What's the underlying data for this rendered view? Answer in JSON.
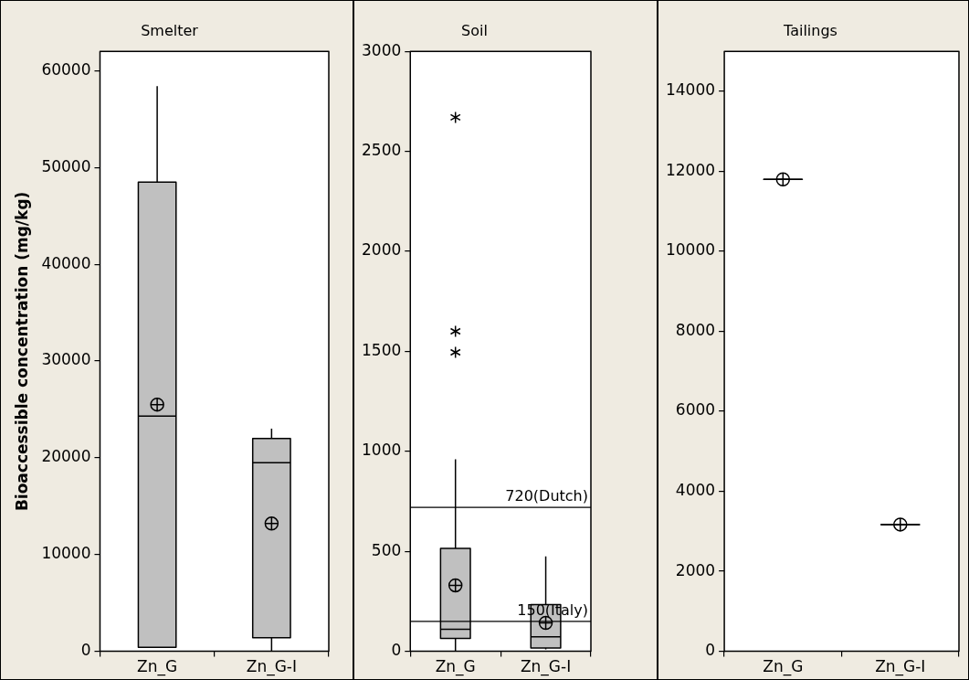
{
  "chart_data": [
    {
      "type": "box",
      "title": "Smelter",
      "ylabel": "Bioaccessible concentration (mg/kg)",
      "categories": [
        "Zn_G",
        "Zn_G-I"
      ],
      "color": "#c0c0c0",
      "ylim": [
        0,
        62000
      ],
      "yticks": [
        0,
        10000,
        20000,
        30000,
        40000,
        50000,
        60000
      ],
      "boxes": [
        {
          "low": 400,
          "q1": 400,
          "median": 24300,
          "q3": 48500,
          "high": 58400,
          "mean": 25500
        },
        {
          "low": 0,
          "q1": 1400,
          "median": 19500,
          "q3": 22000,
          "high": 23000,
          "mean": 13200
        }
      ]
    },
    {
      "type": "box",
      "title": "Soil",
      "categories": [
        "Zn_G",
        "Zn_G-I"
      ],
      "color": "#c0c0c0",
      "ylim": [
        0,
        3000
      ],
      "yticks": [
        0,
        500,
        1000,
        1500,
        2000,
        2500,
        3000
      ],
      "boxes": [
        {
          "low": 0,
          "q1": 65,
          "median": 110,
          "q3": 515,
          "high": 960,
          "mean": 330,
          "outliers": [
            1495,
            1600,
            2670
          ]
        },
        {
          "low": 10,
          "q1": 17,
          "median": 72,
          "q3": 233,
          "high": 475,
          "mean": 142
        }
      ],
      "ref_lines": [
        {
          "axis": "y",
          "value": 720,
          "label": "720(Dutch)"
        },
        {
          "axis": "y",
          "value": 150,
          "label": "150(Italy)"
        }
      ]
    },
    {
      "type": "box",
      "title": "Tailings",
      "categories": [
        "Zn_G",
        "Zn_G-I"
      ],
      "ylim": [
        0,
        15000
      ],
      "yticks": [
        0,
        2000,
        4000,
        6000,
        8000,
        10000,
        12000,
        14000
      ],
      "boxes": [
        {
          "low": 11800,
          "q1": 11800,
          "median": 11800,
          "q3": 11800,
          "high": 11800,
          "mean": 11800
        },
        {
          "low": 3170,
          "q1": 3170,
          "median": 3170,
          "q3": 3170,
          "high": 3170,
          "mean": 3170
        }
      ]
    }
  ]
}
